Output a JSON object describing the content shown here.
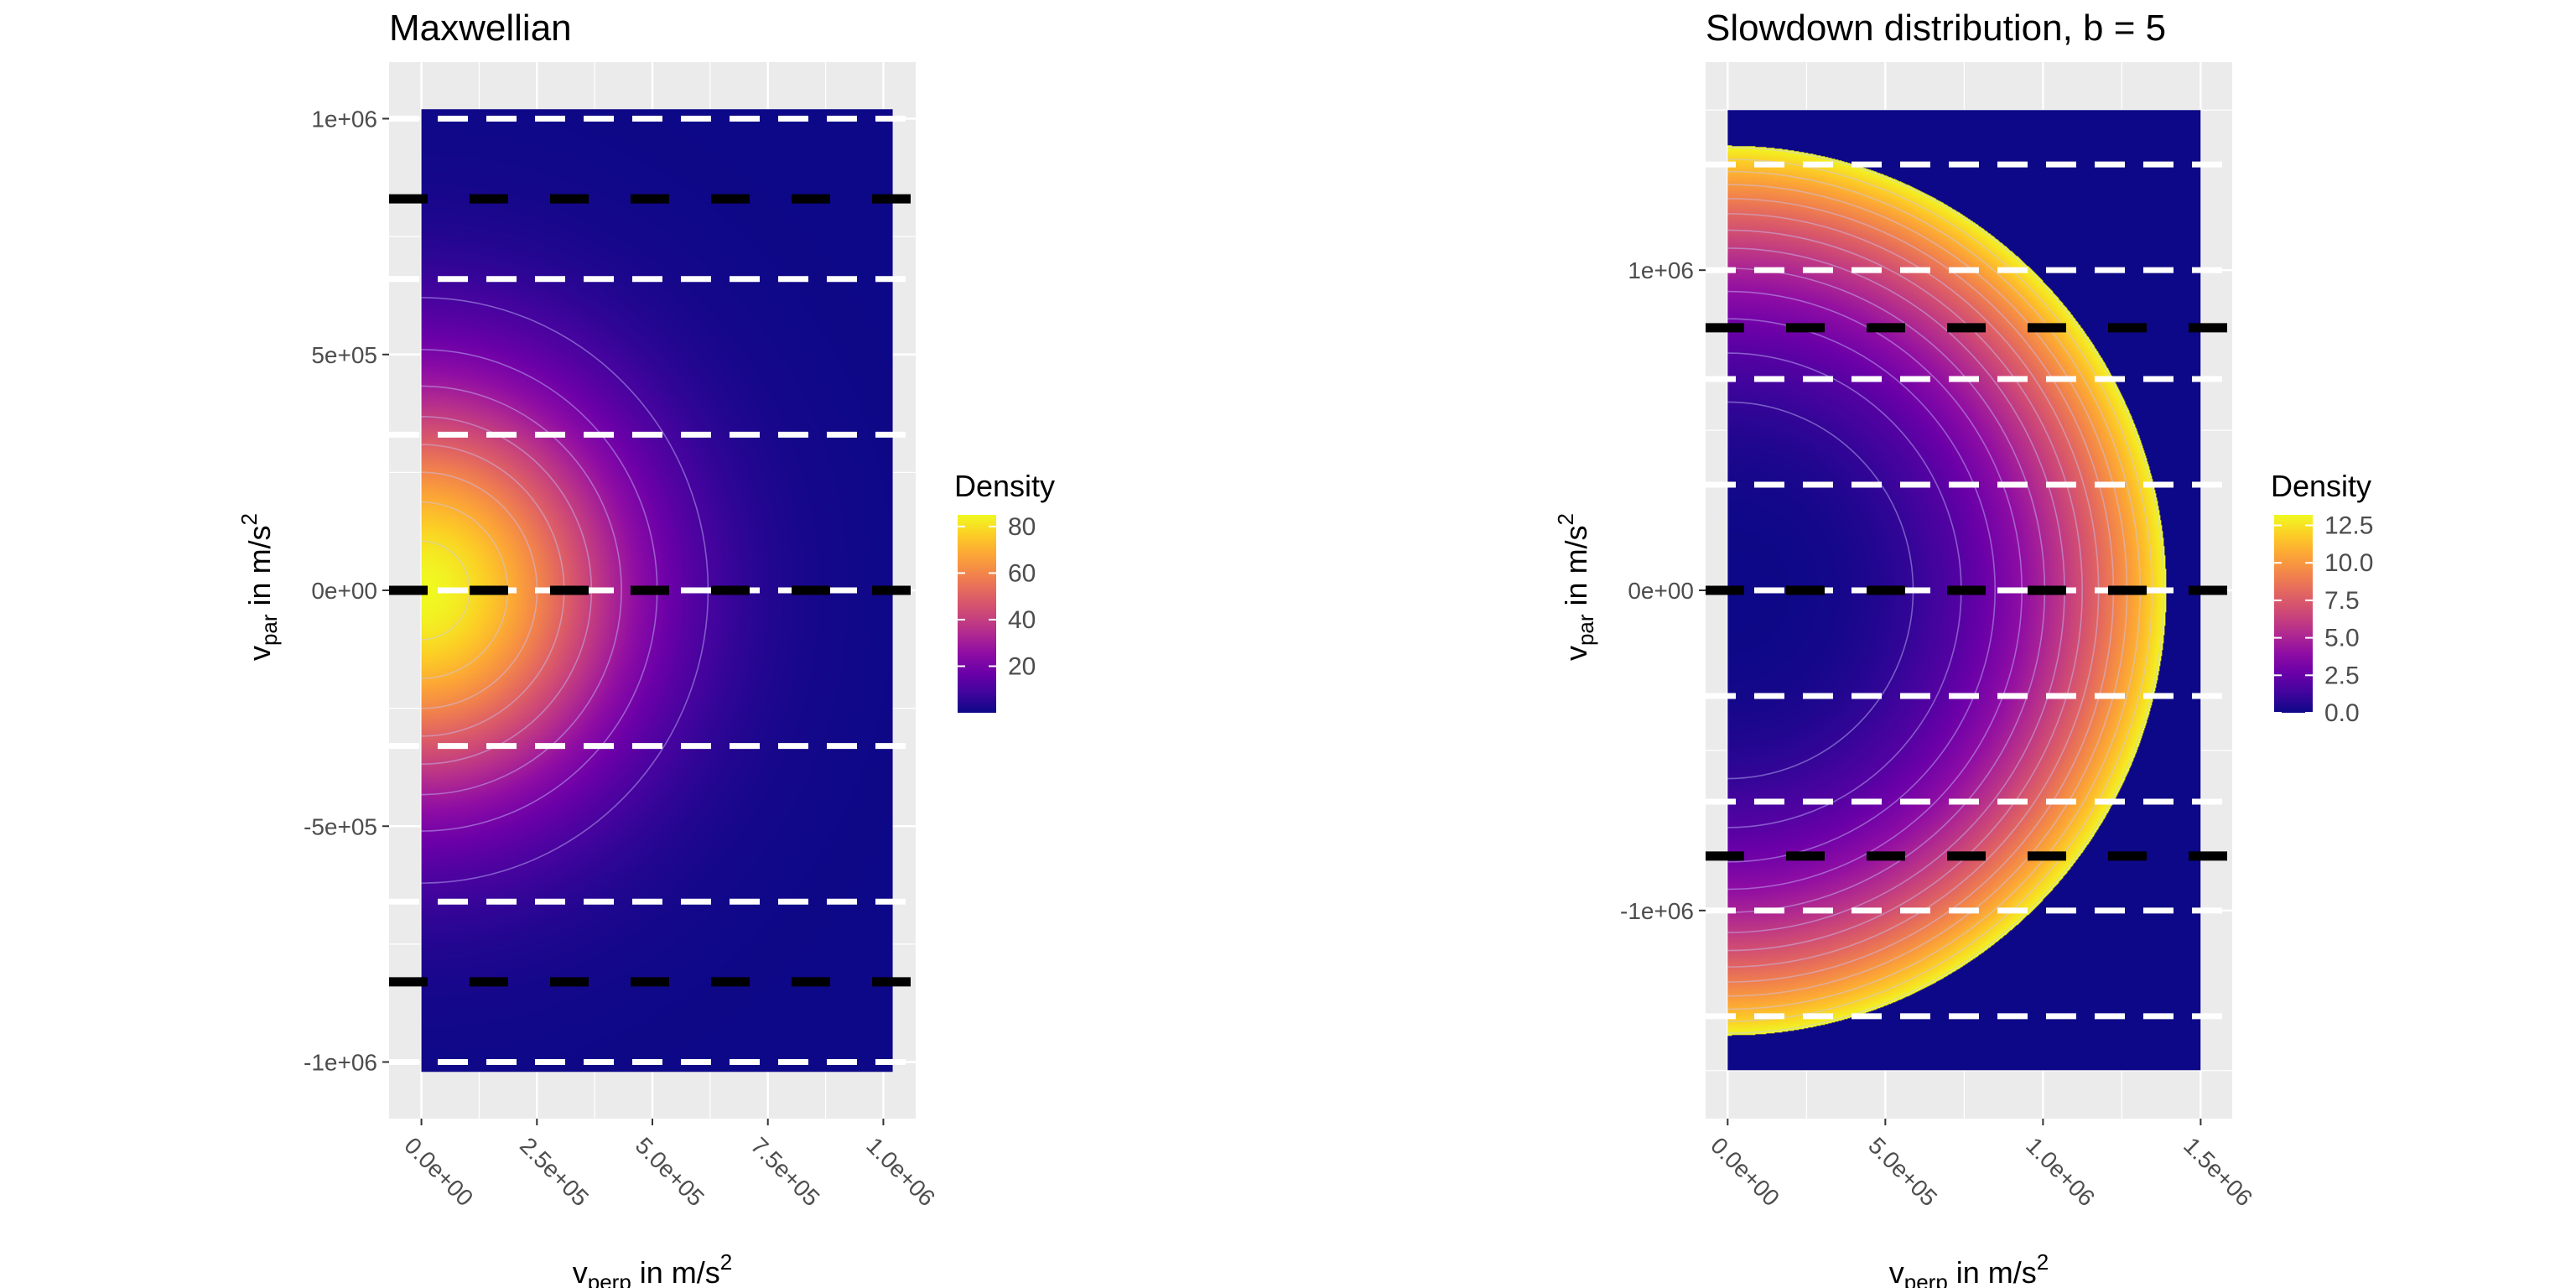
{
  "chart_data": [
    {
      "type": "heatmap",
      "title": "Maxwellian",
      "xlabel": {
        "main": "v",
        "sub": "perp",
        "rest": " in m/s",
        "sup": "2"
      },
      "ylabel": {
        "main": "v",
        "sub": "par",
        "rest": " in m/s",
        "sup": "2"
      },
      "xlim": [
        -70000,
        1070000
      ],
      "ylim": [
        -1120000,
        1120000
      ],
      "x_ticks": [
        0,
        250000,
        500000,
        750000,
        1000000
      ],
      "x_tick_labels": [
        "0.0e+00",
        "2.5e+05",
        "5.0e+05",
        "7.5e+05",
        "1.0e+06"
      ],
      "y_ticks": [
        1000000,
        500000,
        0,
        -500000,
        -1000000
      ],
      "y_tick_labels": [
        "1e+06",
        "5e+05",
        "0e+00",
        "-5e+05",
        "-1e+06"
      ],
      "field_extent": {
        "x": [
          0,
          1020000
        ],
        "y": [
          -1020000,
          1020000
        ]
      },
      "distribution": "maxwellian",
      "peak_density": 85,
      "contour_levels": [
        10,
        20,
        30,
        40,
        50,
        60,
        70,
        80
      ],
      "white_dashed_lines_y": [
        1000000,
        660000,
        330000,
        0,
        -330000,
        -660000,
        -1000000
      ],
      "black_dashed_lines_y": [
        830000,
        0,
        -830000
      ],
      "legend": {
        "title": "Density",
        "labels": [
          "80",
          "60",
          "40",
          "20"
        ],
        "values": [
          80,
          60,
          40,
          20
        ],
        "range": [
          0,
          85
        ],
        "placement": "right"
      },
      "grid": true
    },
    {
      "type": "heatmap",
      "title": "Slowdown distribution, b = 5",
      "xlabel": {
        "main": "v",
        "sub": "perp",
        "rest": " in m/s",
        "sup": "2"
      },
      "ylabel": {
        "main": "v",
        "sub": "par",
        "rest": " in m/s",
        "sup": "2"
      },
      "xlim": [
        -70000,
        1600000
      ],
      "ylim": [
        -1650000,
        1650000
      ],
      "x_ticks": [
        0,
        500000,
        1000000,
        1500000
      ],
      "x_tick_labels": [
        "0.0e+00",
        "5.0e+05",
        "1.0e+06",
        "1.5e+06"
      ],
      "y_ticks": [
        1000000,
        0,
        -1000000
      ],
      "y_tick_labels": [
        "1e+06",
        "0e+00",
        "-1e+06"
      ],
      "field_extent": {
        "x": [
          0,
          1500000
        ],
        "y": [
          -1500000,
          1500000
        ]
      },
      "distribution": "slowdown",
      "b": 5,
      "cutoff_speed": 1390000,
      "density_at_cutoff": 13.2,
      "contour_levels": [
        1,
        2,
        3,
        4,
        5,
        6,
        7,
        8,
        9,
        10,
        11,
        12,
        13
      ],
      "white_dashed_lines_y": [
        1330000,
        1000000,
        660000,
        330000,
        0,
        -330000,
        -660000,
        -1000000,
        -1330000
      ],
      "black_dashed_lines_y": [
        820000,
        0,
        -830000
      ],
      "legend": {
        "title": "Density",
        "labels": [
          "12.5",
          "10.0",
          "7.5",
          "5.0",
          "2.5",
          "0.0"
        ],
        "values": [
          12.5,
          10.0,
          7.5,
          5.0,
          2.5,
          0.0
        ],
        "range": [
          0,
          13.2
        ],
        "placement": "right"
      },
      "grid": true
    }
  ],
  "colors": {
    "panel_background": "#ebebeb",
    "grid": "#ffffff",
    "plasma": [
      "#0d0887",
      "#41049d",
      "#6a00a8",
      "#8f0da4",
      "#b12a90",
      "#cc4778",
      "#e16462",
      "#f2844b",
      "#fca636",
      "#fcce25",
      "#f0f921"
    ]
  }
}
